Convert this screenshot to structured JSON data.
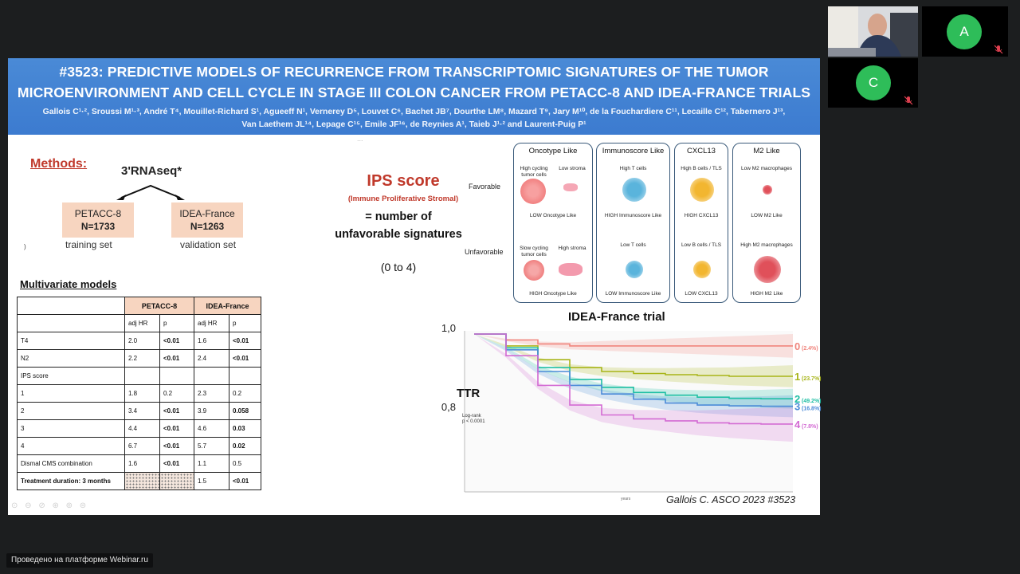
{
  "slide": {
    "title_line1": "#3523: PREDICTIVE MODELS OF RECURRENCE FROM TRANSCRIPTOMIC SIGNATURES OF THE TUMOR",
    "title_line2": "MICROENVIRONMENT AND CELL CYCLE IN STAGE III COLON CANCER FROM PETACC-8 AND IDEA-FRANCE TRIALS",
    "authors_line1": "Gallois C¹·², Sroussi M¹·³, André T⁴, Mouillet-Richard S¹, Agueeff N¹, Vernerey D⁵, Louvet C⁶, Bachet JB⁷, Dourthe LM⁸, Mazard T⁹, Jary M¹⁰, de la Fouchardiere C¹¹, Lecaille C¹², Tabernero J¹³,",
    "authors_line2": "Van Laethem JL¹⁴, Lepage C¹⁵, Emile JF¹⁶, de Reynies A¹, Taieb J¹·² and Laurent-Puig P¹",
    "faded_text": "...",
    "small_mark": ")",
    "methods": {
      "heading": "Methods:",
      "assay": "3'RNAseq*",
      "cohorts": [
        {
          "name": "PETACC-8",
          "n": "N=1733",
          "caption": "training set"
        },
        {
          "name": "IDEA-France",
          "n": "N=1263",
          "caption": "validation set"
        }
      ]
    },
    "multivariate": {
      "heading": "Multivariate models",
      "groups": [
        "PETACC-8",
        "IDEA-France"
      ],
      "subheaders": [
        "adj HR",
        "p",
        "adj HR",
        "p"
      ],
      "rows": [
        {
          "label": "T4",
          "v": [
            "2.0",
            "<0.01",
            "1.6",
            "<0.01"
          ],
          "bold": [
            false,
            true,
            false,
            true
          ]
        },
        {
          "label": "N2",
          "v": [
            "2.2",
            "<0.01",
            "2.4",
            "<0.01"
          ],
          "bold": [
            false,
            true,
            false,
            true
          ]
        },
        {
          "label": "IPS  score",
          "v": [
            "",
            "",
            "",
            ""
          ],
          "bold": [
            false,
            false,
            false,
            false
          ]
        },
        {
          "label": "1",
          "v": [
            "1.8",
            "0.2",
            "2.3",
            "0.2"
          ],
          "bold": [
            false,
            false,
            false,
            false
          ]
        },
        {
          "label": "2",
          "v": [
            "3.4",
            "<0.01",
            "3.9",
            "0.058"
          ],
          "bold": [
            false,
            true,
            false,
            true
          ]
        },
        {
          "label": "3",
          "v": [
            "4.4",
            "<0.01",
            "4.6",
            "0.03"
          ],
          "bold": [
            false,
            true,
            false,
            true
          ]
        },
        {
          "label": "4",
          "v": [
            "6.7",
            "<0.01",
            "5.7",
            "0.02"
          ],
          "bold": [
            false,
            true,
            false,
            true
          ]
        },
        {
          "label": "Dismal CMS combination",
          "v": [
            "1.6",
            "<0.01",
            "1.1",
            "0.5"
          ],
          "bold": [
            false,
            true,
            false,
            false
          ]
        },
        {
          "label": "Treatment duration: 3 months",
          "v": [
            "",
            "",
            "1.5",
            "<0.01"
          ],
          "bold": [
            true,
            false,
            false,
            true
          ]
        }
      ]
    },
    "ips": {
      "title": "IPS score",
      "subtitle": "(Immune Proliferative Stromal)",
      "definition": "= number of unfavorable signatures",
      "range": "(0 to 4)"
    },
    "signatures": {
      "favorable_label": "Favorable",
      "unfavorable_label": "Unfavorable",
      "columns": [
        {
          "title": "Oncotype Like",
          "fav_a": "High cycling tumor cells",
          "fav_b": "Low stroma",
          "fav_caption": "LOW Oncotype Like",
          "unfav_a": "Slow cycling tumor cells",
          "unfav_b": "High stroma",
          "unfav_caption": "HIGH Oncotype Like",
          "fav_color": "#f07a7a",
          "unfav_color": "#f07a7a"
        },
        {
          "title": "Immunoscore Like",
          "fav_a": "High T cells",
          "fav_caption": "HIGH Immunoscore Like",
          "unfav_a": "Low T cells",
          "unfav_caption": "LOW Immunoscore Like",
          "fav_color": "#5ab4dc",
          "unfav_color": "#5ab4dc"
        },
        {
          "title": "CXCL13",
          "fav_a": "High B cells / TLS",
          "fav_caption": "HIGH CXCL13",
          "unfav_a": "Low B cells / TLS",
          "unfav_caption": "LOW CXCL13",
          "fav_color": "#f2b630",
          "unfav_color": "#f2b630"
        },
        {
          "title": "M2 Like",
          "fav_a": "Low M2 macrophages",
          "fav_caption": "LOW M2 Like",
          "unfav_a": "High M2 macrophages",
          "unfav_caption": "HIGH M2 Like",
          "fav_color": "#e0505a",
          "unfav_color": "#e0505a"
        }
      ]
    },
    "km": {
      "title": "IDEA-France trial",
      "endpoint": "TTR",
      "logrank_line1": "Log-rank",
      "logrank_line2": "p < 0.0001",
      "x_label": "years",
      "y_ticks": [
        "1,0",
        "0,8"
      ]
    },
    "citation": "Gallois C. ASCO 2023 #3523",
    "tools": "⊙ ⊖ ⊘ ⊛ ⊚ ⊜"
  },
  "chart_data": {
    "type": "line",
    "title": "IDEA-France trial",
    "ylabel": "TTR",
    "xlabel": "years",
    "ylim": [
      0.6,
      1.0
    ],
    "x": [
      0,
      0.2,
      0.4,
      0.6,
      0.8,
      1.0,
      1.2,
      1.4,
      1.6,
      1.8,
      2.0
    ],
    "series": [
      {
        "name": "0",
        "pct": "(2.4%)",
        "color": "#f0857d",
        "values": [
          1.0,
          0.985,
          0.975,
          0.97,
          0.97,
          0.97,
          0.97,
          0.97,
          0.97,
          0.97,
          0.97
        ]
      },
      {
        "name": "1",
        "pct": "(23.7%)",
        "color": "#a8b519",
        "values": [
          1.0,
          0.97,
          0.935,
          0.915,
          0.905,
          0.9,
          0.897,
          0.895,
          0.893,
          0.893,
          0.893
        ]
      },
      {
        "name": "2",
        "pct": "(49.2%)",
        "color": "#1fbfa4",
        "values": [
          1.0,
          0.965,
          0.915,
          0.885,
          0.865,
          0.852,
          0.845,
          0.84,
          0.837,
          0.836,
          0.836
        ]
      },
      {
        "name": "3",
        "pct": "(16.8%)",
        "color": "#4b8bd8",
        "values": [
          1.0,
          0.96,
          0.905,
          0.87,
          0.848,
          0.835,
          0.825,
          0.82,
          0.818,
          0.817,
          0.817
        ]
      },
      {
        "name": "4",
        "pct": "(7.8%)",
        "color": "#d36ad3",
        "values": [
          1.0,
          0.945,
          0.87,
          0.82,
          0.795,
          0.785,
          0.78,
          0.775,
          0.773,
          0.772,
          0.772
        ]
      }
    ]
  },
  "participants": [
    {
      "name": "video",
      "initial": ""
    },
    {
      "name": "A",
      "initial": "A",
      "color": "#2ebd59"
    },
    {
      "name": "C",
      "initial": "C",
      "color": "#2ebd59"
    }
  ],
  "footer": {
    "text": "Проведено на платформе Webinar.ru"
  }
}
